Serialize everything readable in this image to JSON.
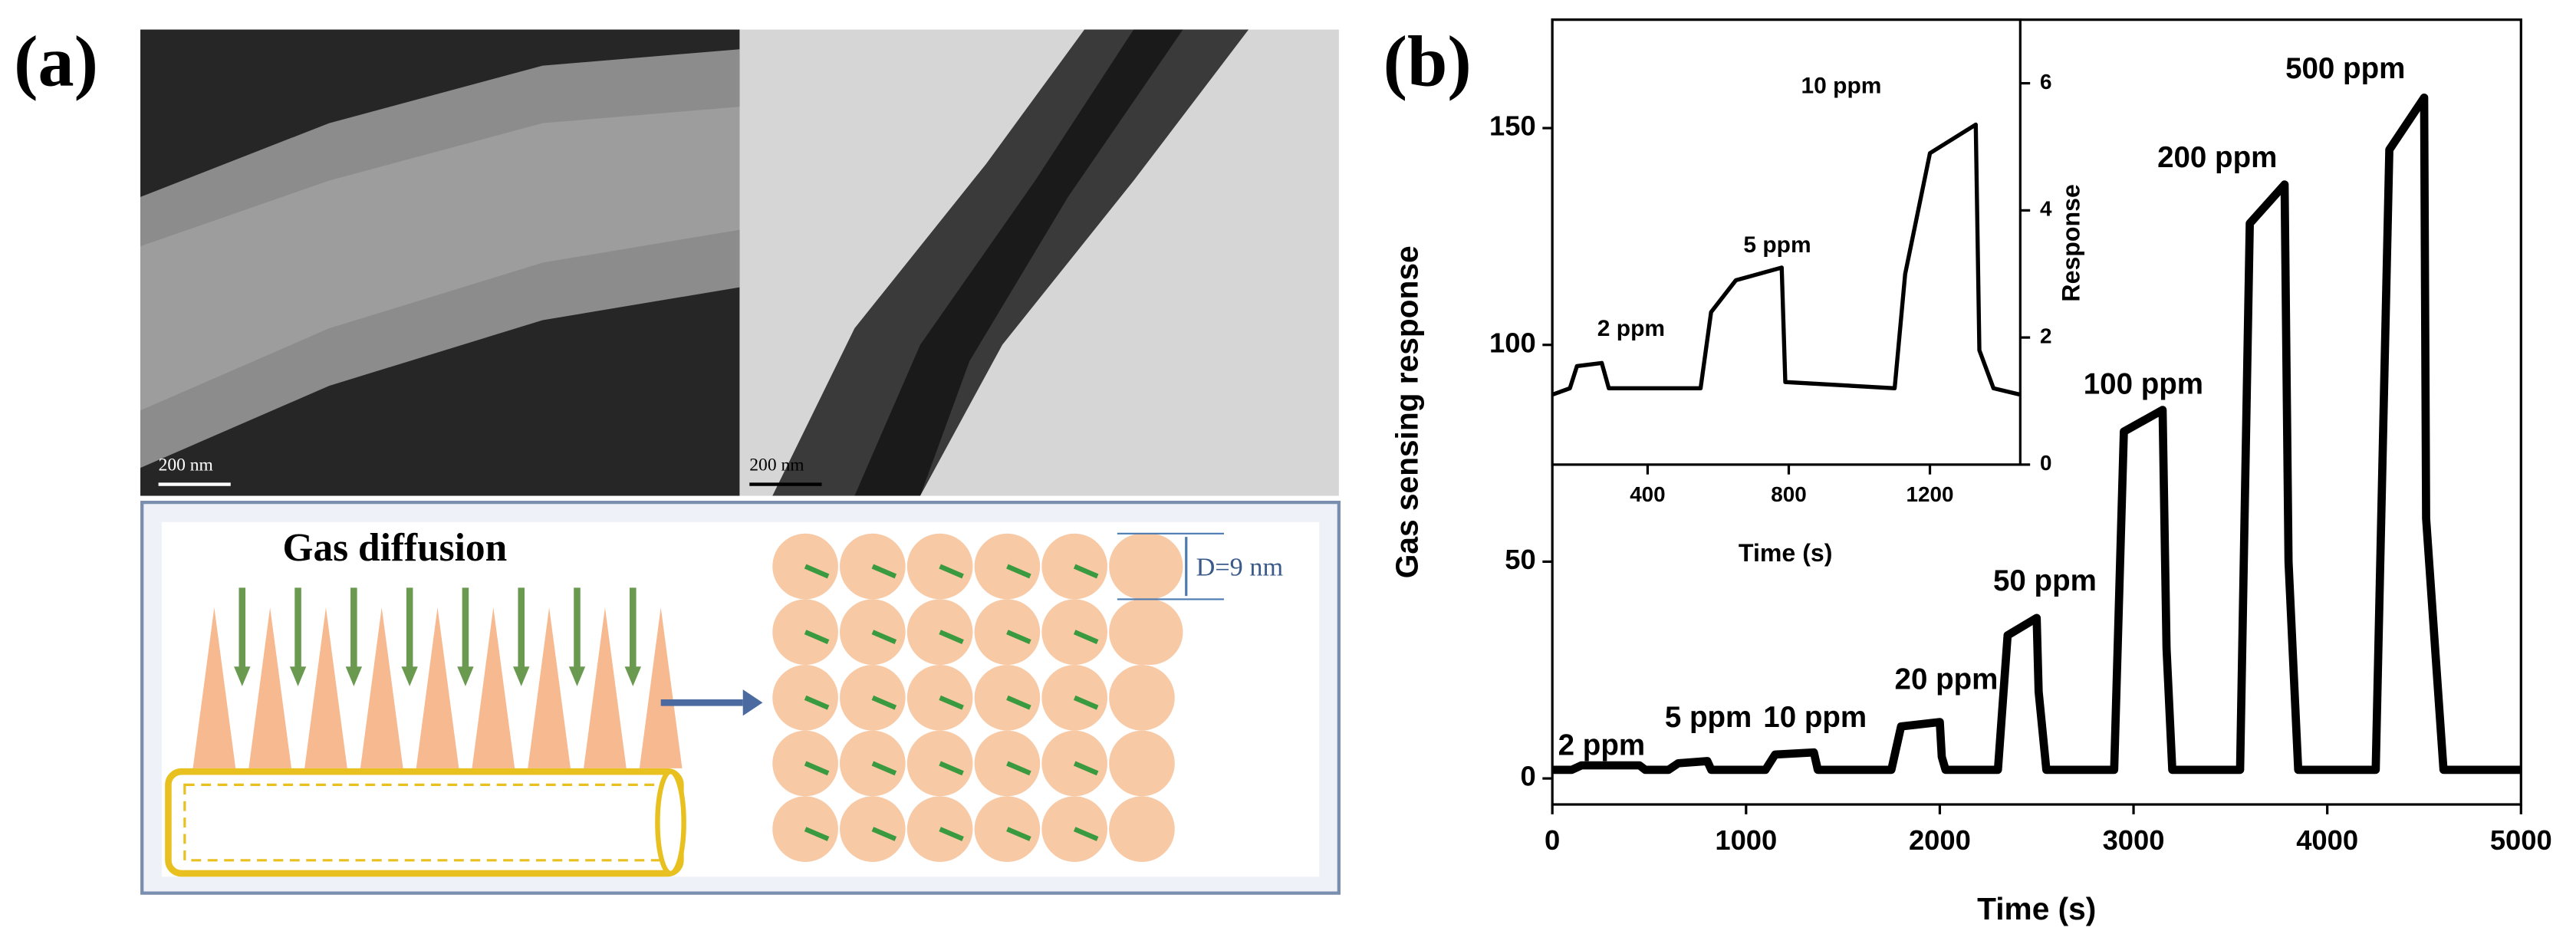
{
  "panel_a": {
    "label": "(a)",
    "sem_scale_bar": "200 nm",
    "tem_scale_bar": "200 nm",
    "diagram_title": "Gas diffusion",
    "dimension_label": "D=9 nm"
  },
  "panel_b_label": "(b)",
  "chart_data": [
    {
      "type": "line",
      "xlabel": "Time (s)",
      "ylabel": "Gas sensing response",
      "color": "#000000",
      "x": [
        0,
        100,
        150,
        450,
        480,
        600,
        650,
        800,
        820,
        1100,
        1150,
        1350,
        1370,
        1750,
        1800,
        2000,
        2010,
        2030,
        2300,
        2350,
        2500,
        2510,
        2550,
        2900,
        2950,
        3150,
        3170,
        3200,
        3550,
        3600,
        3780,
        3800,
        3850,
        4250,
        4320,
        4500,
        4510,
        4600,
        5000
      ],
      "values": [
        2,
        2,
        3,
        3,
        2,
        2,
        3.5,
        4,
        2,
        2,
        5.5,
        6,
        2,
        2,
        12,
        13,
        5,
        2,
        2,
        33,
        37,
        20,
        2,
        2,
        80,
        85,
        30,
        2,
        2,
        128,
        137,
        50,
        2,
        2,
        145,
        157,
        60,
        2,
        2
      ],
      "annotations": [
        "2 ppm",
        "5 ppm",
        "10 ppm",
        "20 ppm",
        "50 ppm",
        "100 ppm",
        "200 ppm",
        "500 ppm"
      ],
      "xlim": [
        0,
        5000
      ],
      "xticks": [
        0,
        1000,
        2000,
        3000,
        4000,
        5000
      ],
      "ylim": [
        -6,
        175
      ],
      "yticks": [
        0,
        50,
        100,
        150
      ]
    },
    {
      "type": "line",
      "xlabel": "Time (s)",
      "ylabel": "Response",
      "color": "#000000",
      "y_axis_side": "right",
      "x": [
        130,
        180,
        200,
        270,
        290,
        550,
        580,
        650,
        780,
        790,
        1100,
        1130,
        1200,
        1330,
        1340,
        1380,
        1456
      ],
      "values": [
        1.1,
        1.2,
        1.55,
        1.6,
        1.2,
        1.2,
        2.4,
        2.9,
        3.1,
        1.3,
        1.2,
        3,
        4.9,
        5.35,
        1.8,
        1.2,
        1.1
      ],
      "annotations": [
        "2 ppm",
        "5 ppm",
        "10 ppm"
      ],
      "xlim": [
        130,
        1456
      ],
      "xticks": [
        400,
        800,
        1200
      ],
      "ylim": [
        0,
        7
      ],
      "yticks": [
        0,
        2,
        4,
        6
      ]
    }
  ]
}
